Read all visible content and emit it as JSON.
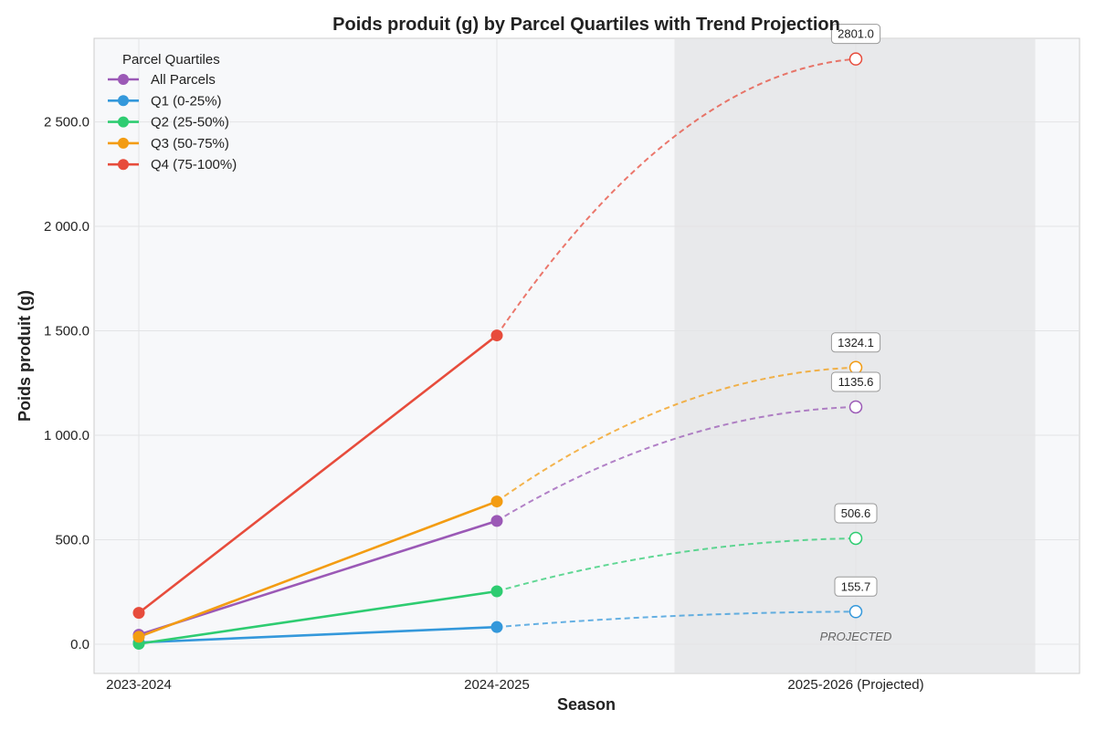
{
  "chart_data": {
    "type": "line",
    "title": "Poids produit (g) by Parcel Quartiles with Trend Projection",
    "xlabel": "Season",
    "ylabel": "Poids produit (g)",
    "categories": [
      "2023-2024",
      "2024-2025",
      "2025-2026 (Projected)"
    ],
    "projected_index": 2,
    "projected_band_label": "PROJECTED",
    "ylim": [
      -140,
      2900
    ],
    "yticks": [
      0,
      500,
      1000,
      1500,
      2000,
      2500
    ],
    "ytick_labels": [
      "0.0",
      "500.0",
      "1 000.0",
      "1 500.0",
      "2 000.0",
      "2 500.0"
    ],
    "grid": true,
    "legend": {
      "title": "Parcel Quartiles",
      "placement": "top-left"
    },
    "series": [
      {
        "name": "All Parcels",
        "color": "#9b59b6",
        "values": [
          45,
          590,
          1135.6
        ],
        "projected_label": "1135.6"
      },
      {
        "name": "Q1 (0-25%)",
        "color": "#3498db",
        "values": [
          8,
          82,
          155.7
        ],
        "projected_label": "155.7"
      },
      {
        "name": "Q2 (25-50%)",
        "color": "#2ecc71",
        "values": [
          2,
          253,
          506.6
        ],
        "projected_label": "506.6"
      },
      {
        "name": "Q3 (50-75%)",
        "color": "#f39c12",
        "values": [
          35,
          683,
          1324.1
        ],
        "projected_label": "1324.1"
      },
      {
        "name": "Q4 (75-100%)",
        "color": "#e74c3c",
        "values": [
          150,
          1478,
          2801.0
        ],
        "projected_label": "2801.0"
      }
    ]
  }
}
